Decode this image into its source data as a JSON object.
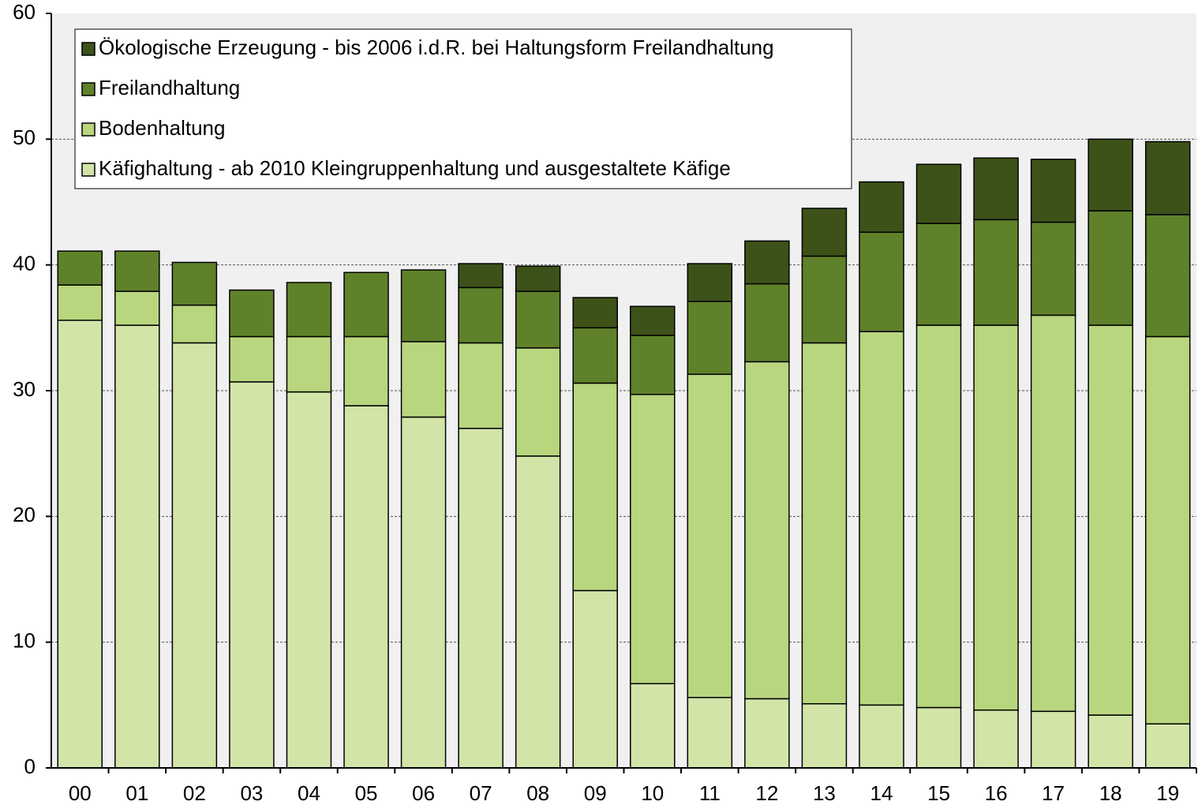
{
  "chart_data": {
    "type": "stacked_bar",
    "categories": [
      "00",
      "01",
      "02",
      "03",
      "04",
      "05",
      "06",
      "07",
      "08",
      "09",
      "10",
      "11",
      "12",
      "13",
      "14",
      "15",
      "16",
      "17",
      "18",
      "19"
    ],
    "series": [
      {
        "name": "Käfighaltung - ab 2010 Kleingruppenhaltung und ausgestaltete Käfige",
        "color": "#d2e4a8",
        "values": [
          35.6,
          35.2,
          33.8,
          30.7,
          29.9,
          28.8,
          27.9,
          27.0,
          24.8,
          14.1,
          6.7,
          5.6,
          5.5,
          5.1,
          5.0,
          4.8,
          4.6,
          4.5,
          4.2,
          3.5
        ]
      },
      {
        "name": "Bodenhaltung",
        "color": "#b8d67e",
        "values": [
          2.8,
          2.7,
          3.0,
          3.6,
          4.4,
          5.5,
          6.0,
          6.8,
          8.6,
          16.5,
          23.0,
          25.7,
          26.8,
          28.7,
          29.7,
          30.4,
          30.6,
          31.5,
          31.0,
          30.8
        ]
      },
      {
        "name": "Freilandhaltung",
        "color": "#5f8129",
        "values": [
          2.7,
          3.2,
          3.4,
          3.7,
          4.3,
          5.1,
          5.7,
          4.4,
          4.5,
          4.4,
          4.7,
          5.8,
          6.2,
          6.9,
          7.9,
          8.1,
          8.4,
          7.4,
          9.1,
          9.7
        ]
      },
      {
        "name": "Ökologische Erzeugung - bis 2006 i.d.R. bei Haltungsform Freilandhaltung",
        "color": "#3d5219",
        "values": [
          0,
          0,
          0,
          0,
          0,
          0,
          0,
          1.9,
          2.0,
          2.4,
          2.3,
          3.0,
          3.4,
          3.8,
          4.0,
          4.7,
          4.9,
          5.0,
          5.7,
          5.8
        ]
      }
    ],
    "ylim": [
      0,
      60
    ],
    "yticks": [
      0,
      10,
      20,
      30,
      40,
      50,
      60
    ],
    "grid": true,
    "legend": "upper left"
  }
}
